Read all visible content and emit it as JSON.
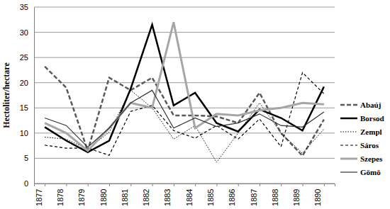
{
  "chart_data": {
    "type": "line",
    "y_label": "Hectoliter/hectare",
    "categories": [
      "1877",
      "1878",
      "1879",
      "1880",
      "1881",
      "1882",
      "1883",
      "1884",
      "1885",
      "1886",
      "1887",
      "1888",
      "1889",
      "1890"
    ],
    "series": [
      {
        "name": "Abaúj",
        "color": "#595959",
        "line_style": "dashed",
        "values": [
          23.2,
          19,
          6.5,
          21,
          18.5,
          21,
          13.5,
          13.5,
          13.3,
          12,
          18,
          10,
          5.5,
          12.7
        ]
      },
      {
        "name": "Borsod",
        "color": "#000000",
        "line_style": "solid",
        "values": [
          11.2,
          8.5,
          6.2,
          8.5,
          18.8,
          31.5,
          15.5,
          18,
          12,
          10.3,
          14.7,
          13,
          10.5,
          19.2
        ]
      },
      {
        "name": "Zempl",
        "color": "#000000",
        "line_style": "dotted",
        "values": [
          9.2,
          8.8,
          6.8,
          10.2,
          18.5,
          15,
          8.8,
          11.5,
          4.2,
          10,
          16,
          10,
          6,
          10.8
        ]
      },
      {
        "name": "Sáros",
        "color": "#000000",
        "line_style": "dashed",
        "values": [
          7.6,
          7,
          7,
          5.6,
          14.3,
          15.5,
          10.5,
          9,
          11.5,
          8.8,
          12.8,
          7.3,
          22,
          17.8
        ]
      },
      {
        "name": "Szepes",
        "color": "#a6a6a6",
        "line_style": "solid",
        "values": [
          12,
          10,
          6.5,
          11,
          16,
          15,
          32,
          11,
          13.8,
          13.5,
          14.5,
          15,
          16,
          15.7
        ]
      },
      {
        "name": "Gömö",
        "color": "#333333",
        "line_style": "solid",
        "values": [
          13,
          11.5,
          7.2,
          11,
          16,
          18.5,
          11,
          13,
          11.3,
          12,
          13.8,
          11.5,
          11.2,
          14.2
        ]
      }
    ],
    "ylim": [
      0,
      35
    ],
    "yticks": [
      0,
      5,
      10,
      15,
      20,
      25,
      30,
      35
    ],
    "grid": true,
    "legend": "right"
  }
}
